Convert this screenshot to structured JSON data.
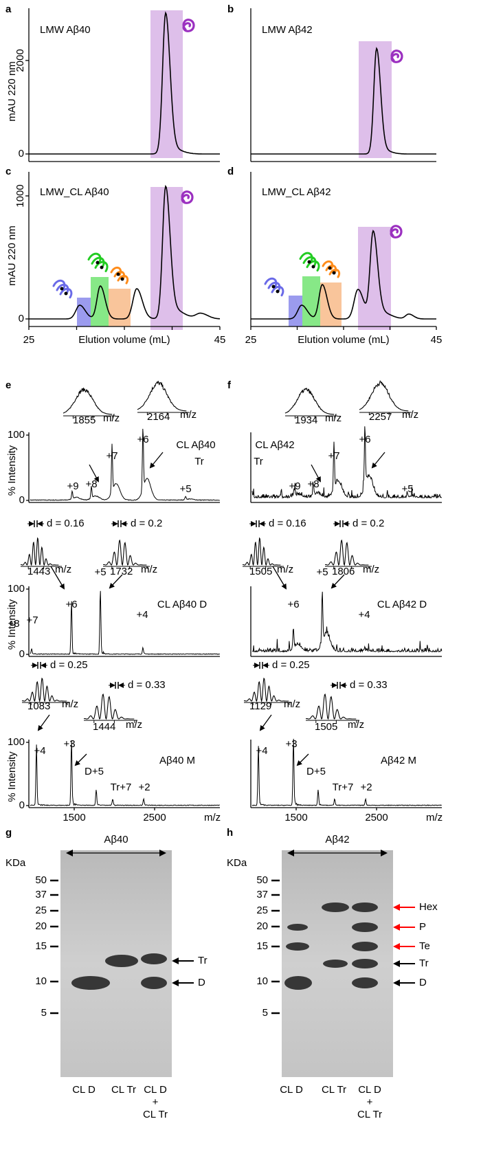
{
  "chromatography": {
    "y_axis_label": "mAU 220 nm",
    "x_axis_label": "Elution volume (mL)",
    "panels": [
      {
        "letter": "a",
        "label": "LMW Aβ40",
        "yticks": [
          2000,
          0
        ]
      },
      {
        "letter": "b",
        "label": "LMW Aβ42"
      },
      {
        "letter": "c",
        "label": "LMW_CL Aβ40",
        "yticks": [
          1000,
          0
        ],
        "xticks": [
          25,
          45
        ]
      },
      {
        "letter": "d",
        "label": "LMW_CL Aβ42",
        "xticks": [
          25,
          45
        ]
      }
    ]
  },
  "mass_spectra": {
    "panels": [
      {
        "letter": "e",
        "xticks": [
          1500,
          2500
        ],
        "x_unit": "m/z",
        "rows": [
          {
            "title": [
              "CL Aβ40",
              "Tr"
            ],
            "color": "#22cc22",
            "y_axis_label": "% Intensity",
            "yticks": [
              100,
              0
            ],
            "insets": [
              {
                "tick": 1855,
                "unit": "m/z"
              },
              {
                "tick": 2164,
                "unit": "m/z"
              }
            ],
            "peaks": [
              {
                "label": "+9",
                "color": "#22cc22"
              },
              {
                "label": "+8",
                "color": "#22cc22"
              },
              {
                "label": "+7",
                "color": "#22cc22"
              },
              {
                "label": "+6",
                "color": "#22cc22"
              },
              {
                "label": "+5",
                "color": "#22cc22"
              }
            ]
          },
          {
            "title": [
              "CL Aβ40 D"
            ],
            "color": "#ff8c1a",
            "y_axis_label": "% Intensity",
            "yticks": [
              100,
              0
            ],
            "insets": [
              {
                "tick": 1443,
                "unit": "m/z",
                "spacing": "d = 0.16"
              },
              {
                "tick": 1732,
                "unit": "m/z",
                "spacing": "d = 0.2"
              }
            ],
            "peaks": [
              {
                "label": "+8",
                "color": "#ff8c1a"
              },
              {
                "label": "+7",
                "color": "#ff8c1a"
              },
              {
                "label": "+6",
                "color": "#ff8c1a"
              },
              {
                "label": "+5",
                "color": "#ff8c1a"
              },
              {
                "label": "+4",
                "color": "#ff8c1a"
              }
            ]
          },
          {
            "title": [
              "Aβ40 M"
            ],
            "color": "#9b30c0",
            "y_axis_label": "% Intensity",
            "yticks": [
              100,
              0
            ],
            "insets": [
              {
                "tick": 1083,
                "unit": "m/z",
                "spacing": "d = 0.25"
              },
              {
                "tick": 1444,
                "unit": "m/z",
                "spacing": "d = 0.33"
              }
            ],
            "peaks": [
              {
                "label": "+4",
                "color": "#9b30c0"
              },
              {
                "label": "+3",
                "color": "#9b30c0"
              },
              {
                "label": "D+5",
                "color": "#ff8c1a"
              },
              {
                "label": "Tr+7",
                "color": "#22cc22"
              },
              {
                "label": "+2",
                "color": "#9b30c0"
              }
            ]
          }
        ]
      },
      {
        "letter": "f",
        "xticks": [
          1500,
          2500
        ],
        "x_unit": "m/z",
        "rows": [
          {
            "title": [
              "CL Aβ42",
              "Tr"
            ],
            "color": "#22cc22",
            "insets": [
              {
                "tick": 1934,
                "unit": "m/z"
              },
              {
                "tick": 2257,
                "unit": "m/z"
              }
            ],
            "peaks": [
              {
                "label": "+9",
                "color": "#22cc22"
              },
              {
                "label": "+8",
                "color": "#22cc22"
              },
              {
                "label": "+7",
                "color": "#22cc22"
              },
              {
                "label": "+6",
                "color": "#22cc22"
              },
              {
                "label": "+5",
                "color": "#22cc22"
              }
            ]
          },
          {
            "title": [
              "CL Aβ42 D"
            ],
            "color": "#ff8c1a",
            "insets": [
              {
                "tick": 1505,
                "unit": "m/z",
                "spacing": "d = 0.16"
              },
              {
                "tick": 1806,
                "unit": "m/z",
                "spacing": "d = 0.2"
              }
            ],
            "peaks": [
              {
                "label": "+6",
                "color": "#ff8c1a"
              },
              {
                "label": "+5",
                "color": "#ff8c1a"
              },
              {
                "label": "+4",
                "color": "#ff8c1a"
              }
            ]
          },
          {
            "title": [
              "Aβ42 M"
            ],
            "color": "#9b30c0",
            "insets": [
              {
                "tick": 1129,
                "unit": "m/z",
                "spacing": "d = 0.25"
              },
              {
                "tick": 1505,
                "unit": "m/z",
                "spacing": "d = 0.33"
              }
            ],
            "peaks": [
              {
                "label": "+4",
                "color": "#9b30c0"
              },
              {
                "label": "+3",
                "color": "#9b30c0"
              },
              {
                "label": "D+5",
                "color": "#ff8c1a"
              },
              {
                "label": "Tr+7",
                "color": "#22cc22"
              },
              {
                "label": "+2",
                "color": "#9b30c0"
              }
            ]
          }
        ]
      }
    ]
  },
  "gels": [
    {
      "letter": "g",
      "peptide": "Aβ40",
      "unit": "KDa",
      "markers": [
        50,
        37,
        25,
        20,
        15,
        10,
        5
      ],
      "bands": [
        {
          "label": "Tr",
          "color": "#000000"
        },
        {
          "label": "D",
          "color": "#000000"
        }
      ],
      "lanes": [
        [
          "CL D"
        ],
        [
          "CL Tr"
        ],
        [
          "CL D",
          "+",
          "CL Tr"
        ]
      ]
    },
    {
      "letter": "h",
      "peptide": "Aβ42",
      "unit": "KDa",
      "markers": [
        50,
        37,
        25,
        20,
        15,
        10,
        5
      ],
      "bands": [
        {
          "label": "Hex",
          "color": "#ff0000"
        },
        {
          "label": "P",
          "color": "#ff0000"
        },
        {
          "label": "Te",
          "color": "#ff0000"
        },
        {
          "label": "Tr",
          "color": "#000000"
        },
        {
          "label": "D",
          "color": "#000000"
        }
      ],
      "lanes": [
        [
          "CL D"
        ],
        [
          "CL Tr"
        ],
        [
          "CL D",
          "+",
          "CL Tr"
        ]
      ]
    }
  ]
}
